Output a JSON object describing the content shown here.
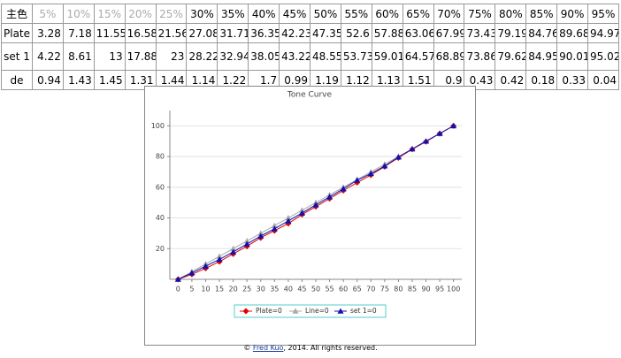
{
  "table": {
    "header": [
      "主色",
      "5%",
      "10%",
      "15%",
      "20%",
      "25%",
      "30%",
      "35%",
      "40%",
      "45%",
      "50%",
      "55%",
      "60%",
      "65%",
      "70%",
      "75%",
      "80%",
      "85%",
      "90%",
      "95%"
    ],
    "rows": [
      [
        "Plate",
        3.28,
        7.18,
        11.55,
        16.58,
        21.56,
        27.08,
        31.71,
        36.35,
        42.23,
        47.35,
        52.6,
        57.88,
        63.06,
        67.99,
        73.43,
        79.19,
        84.76,
        89.68,
        94.97
      ],
      [
        "set 1",
        4.22,
        8.61,
        13,
        17.88,
        23,
        28.22,
        32.94,
        38.05,
        43.22,
        48.55,
        53.73,
        59.01,
        64.57,
        68.89,
        73.86,
        79.62,
        84.95,
        90.01,
        95.02
      ],
      [
        "de",
        0.94,
        1.43,
        1.45,
        1.31,
        1.44,
        1.14,
        1.22,
        1.7,
        0.99,
        1.19,
        1.12,
        1.13,
        1.51,
        0.9,
        0.43,
        0.42,
        0.18,
        0.33,
        0.04
      ]
    ]
  },
  "chart_data": {
    "type": "line",
    "title": "Tone Curve",
    "x": [
      0,
      5,
      10,
      15,
      20,
      25,
      30,
      35,
      40,
      45,
      50,
      55,
      60,
      65,
      70,
      75,
      80,
      85,
      90,
      95,
      100
    ],
    "xlim": [
      -3,
      103
    ],
    "xticks": [
      0,
      5,
      10,
      15,
      20,
      25,
      30,
      35,
      40,
      45,
      50,
      55,
      60,
      65,
      70,
      75,
      80,
      85,
      90,
      95,
      100
    ],
    "ylim": [
      0,
      110
    ],
    "yticks": [
      20,
      40,
      60,
      80,
      100
    ],
    "grid": true,
    "series": [
      {
        "name": "Plate=0",
        "color": "#e00000",
        "marker": "diamond",
        "values": [
          0,
          3.28,
          7.18,
          11.55,
          16.58,
          21.56,
          27.08,
          31.71,
          36.35,
          42.23,
          47.35,
          52.6,
          57.88,
          63.06,
          67.99,
          73.43,
          79.19,
          84.76,
          89.68,
          94.97,
          100
        ]
      },
      {
        "name": "Line=0",
        "color": "#aaaaaa",
        "marker": "triangle",
        "values": [
          0,
          5,
          10,
          15,
          20,
          25,
          30,
          35,
          40,
          45,
          50,
          55,
          60,
          65,
          70,
          75,
          80,
          85,
          90,
          95,
          100
        ]
      },
      {
        "name": "set 1=0",
        "color": "#1010b0",
        "marker": "triangle",
        "values": [
          0,
          4.22,
          8.61,
          13,
          17.88,
          23,
          28.22,
          32.94,
          38.05,
          43.22,
          48.55,
          53.73,
          59.01,
          64.57,
          68.89,
          73.86,
          79.62,
          84.95,
          90.01,
          95.02,
          100
        ]
      }
    ]
  },
  "footer": {
    "prefix": "© ",
    "link": "Fred Kuo",
    "suffix": ", 2014. All rights reserved."
  }
}
